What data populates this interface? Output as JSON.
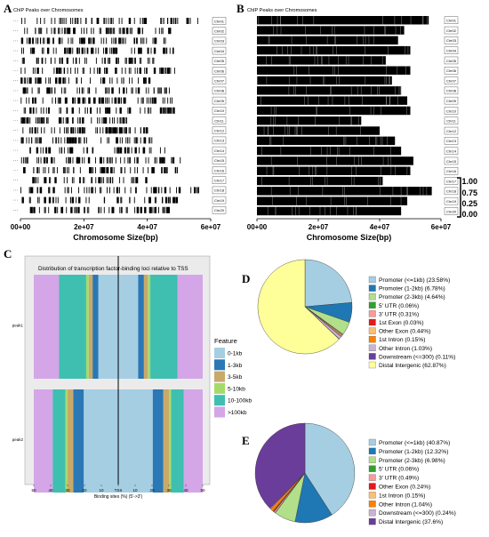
{
  "panels": {
    "a": {
      "letter": "A",
      "title": "ChIP Peaks over Chromosomes",
      "xlabel": "Chromosome Size(bp)"
    },
    "b": {
      "letter": "B",
      "title": "ChIP Peaks over Chromosomes",
      "xlabel": "Chromosome Size(bp)"
    },
    "c": {
      "letter": "C",
      "title": "Distribution of transcription factor-binding loci relative to TSS",
      "xlabel": "Binding sites (%) (5'->3')",
      "legend_title": "Feature"
    },
    "d": {
      "letter": "D"
    },
    "e": {
      "letter": "E"
    }
  },
  "chart_data": [
    {
      "id": "A",
      "type": "scatter",
      "title": "ChIP Peaks over Chromosomes",
      "xlabel": "Chromosome Size(bp)",
      "x_ticks": [
        "00+00",
        "2e+07",
        "4e+07",
        "6e+07"
      ],
      "xlim": [
        0,
        60000000
      ],
      "categories": [
        "Chr01",
        "Chr02",
        "Chr03",
        "Chr04",
        "Chr05",
        "Chr06",
        "Chr07",
        "Chr08",
        "Chr09",
        "Chr10",
        "Chr11",
        "Chr12",
        "Chr13",
        "Chr14",
        "Chr15",
        "Chr16",
        "Chr17",
        "Chr18",
        "Chr19",
        "Chr20"
      ],
      "chrom_lengths": [
        56000000,
        48000000,
        46000000,
        50000000,
        42000000,
        50000000,
        44000000,
        47000000,
        49000000,
        50000000,
        34000000,
        40000000,
        45000000,
        47000000,
        51000000,
        50000000,
        41000000,
        57000000,
        49000000,
        47000000
      ]
    },
    {
      "id": "B",
      "type": "heatmap",
      "title": "ChIP Peaks over Chromosomes",
      "xlabel": "Chromosome Size(bp)",
      "x_ticks": [
        "00+00",
        "2e+07",
        "4e+07",
        "6e+07"
      ],
      "xlim": [
        0,
        60000000
      ],
      "categories": [
        "Chr01",
        "Chr02",
        "Chr03",
        "Chr04",
        "Chr05",
        "Chr06",
        "Chr07",
        "Chr08",
        "Chr09",
        "Chr10",
        "Chr11",
        "Chr12",
        "Chr13",
        "Chr14",
        "Chr15",
        "Chr16",
        "Chr17",
        "Chr18",
        "Chr19",
        "Chr20"
      ],
      "chrom_lengths": [
        56000000,
        48000000,
        46000000,
        50000000,
        42000000,
        50000000,
        44000000,
        47000000,
        49000000,
        50000000,
        34000000,
        40000000,
        45000000,
        47000000,
        51000000,
        50000000,
        41000000,
        57000000,
        49000000,
        47000000
      ],
      "scale_labels": [
        "1.00",
        "0.75",
        "0.25",
        "0.00"
      ]
    },
    {
      "id": "C",
      "type": "bar",
      "title": "Distribution of transcription factor-binding loci relative to TSS",
      "xlabel": "Binding sites (%) (5'->3')",
      "x_ticks": [
        "50",
        "40",
        "30",
        "20",
        "10",
        "TSS",
        "10",
        "20",
        "30",
        "40",
        "50"
      ],
      "categories": [
        "peak1",
        "peak2"
      ],
      "legend_title": "Feature",
      "legend": [
        "0-1kb",
        "1-3kb",
        "3-5kb",
        "5-10kb",
        "10-100kb",
        ">100kb"
      ],
      "colors": [
        "#a6cee3",
        "#2a78b5",
        "#c8a96a",
        "#a6d96a",
        "#3fbfb0",
        "#d4a6e8"
      ],
      "series": [
        {
          "label_key": "0-1kb",
          "values": [
            23.6,
            40.9
          ]
        },
        {
          "label_key": "1-3kb",
          "values": [
            6.8,
            12.3
          ]
        },
        {
          "label_key": "3-5kb",
          "values": [
            4.6,
            7.0
          ]
        },
        {
          "label_key": "5-10kb",
          "values": [
            3.0,
            2.5
          ]
        },
        {
          "label_key": "10-100kb",
          "values": [
            32.0,
            15.0
          ]
        },
        {
          "label_key": ">100kb",
          "values": [
            30.0,
            22.3
          ]
        }
      ]
    },
    {
      "id": "D",
      "type": "pie",
      "labels": [
        "Promoter (<=1kb) (23.58%)",
        "Promoter (1-2kb) (6.78%)",
        "Promoter (2-3kb) (4.64%)",
        "5' UTR (0.06%)",
        "3' UTR (0.31%)",
        "1st Exon (0.03%)",
        "Other Exon (0.44%)",
        "1st Intron (0.15%)",
        "Other Intron (1.03%)",
        "Downstream (<=300) (0.11%)",
        "Distal Intergenic (62.87%)"
      ],
      "values": [
        23.58,
        6.78,
        4.64,
        0.06,
        0.31,
        0.03,
        0.44,
        0.15,
        1.03,
        0.11,
        62.87
      ],
      "colors": [
        "#a6cee3",
        "#1f78b4",
        "#b2df8a",
        "#33a02c",
        "#fb9a99",
        "#e31a1c",
        "#fdbf6f",
        "#ff7f00",
        "#cab2d6",
        "#6a3d9a",
        "#ffff99"
      ]
    },
    {
      "id": "E",
      "type": "pie",
      "labels": [
        "Promoter (<=1kb) (40.87%)",
        "Promoter (1-2kb) (12.32%)",
        "Promoter (2-3kb) (6.98%)",
        "5' UTR (0.06%)",
        "3' UTR (0.49%)",
        "Other Exon (0.24%)",
        "1st Intron (0.15%)",
        "Other Intron (1.04%)",
        "Downstream (<=300) (0.24%)",
        "Distal Intergenic (37.6%)"
      ],
      "values": [
        40.87,
        12.32,
        6.98,
        0.06,
        0.49,
        0.24,
        0.15,
        1.04,
        0.24,
        37.6
      ],
      "colors": [
        "#a6cee3",
        "#1f78b4",
        "#b2df8a",
        "#33a02c",
        "#fb9a99",
        "#e31a1c",
        "#fdbf6f",
        "#ff7f00",
        "#cab2d6",
        "#6a3d9a"
      ]
    }
  ]
}
